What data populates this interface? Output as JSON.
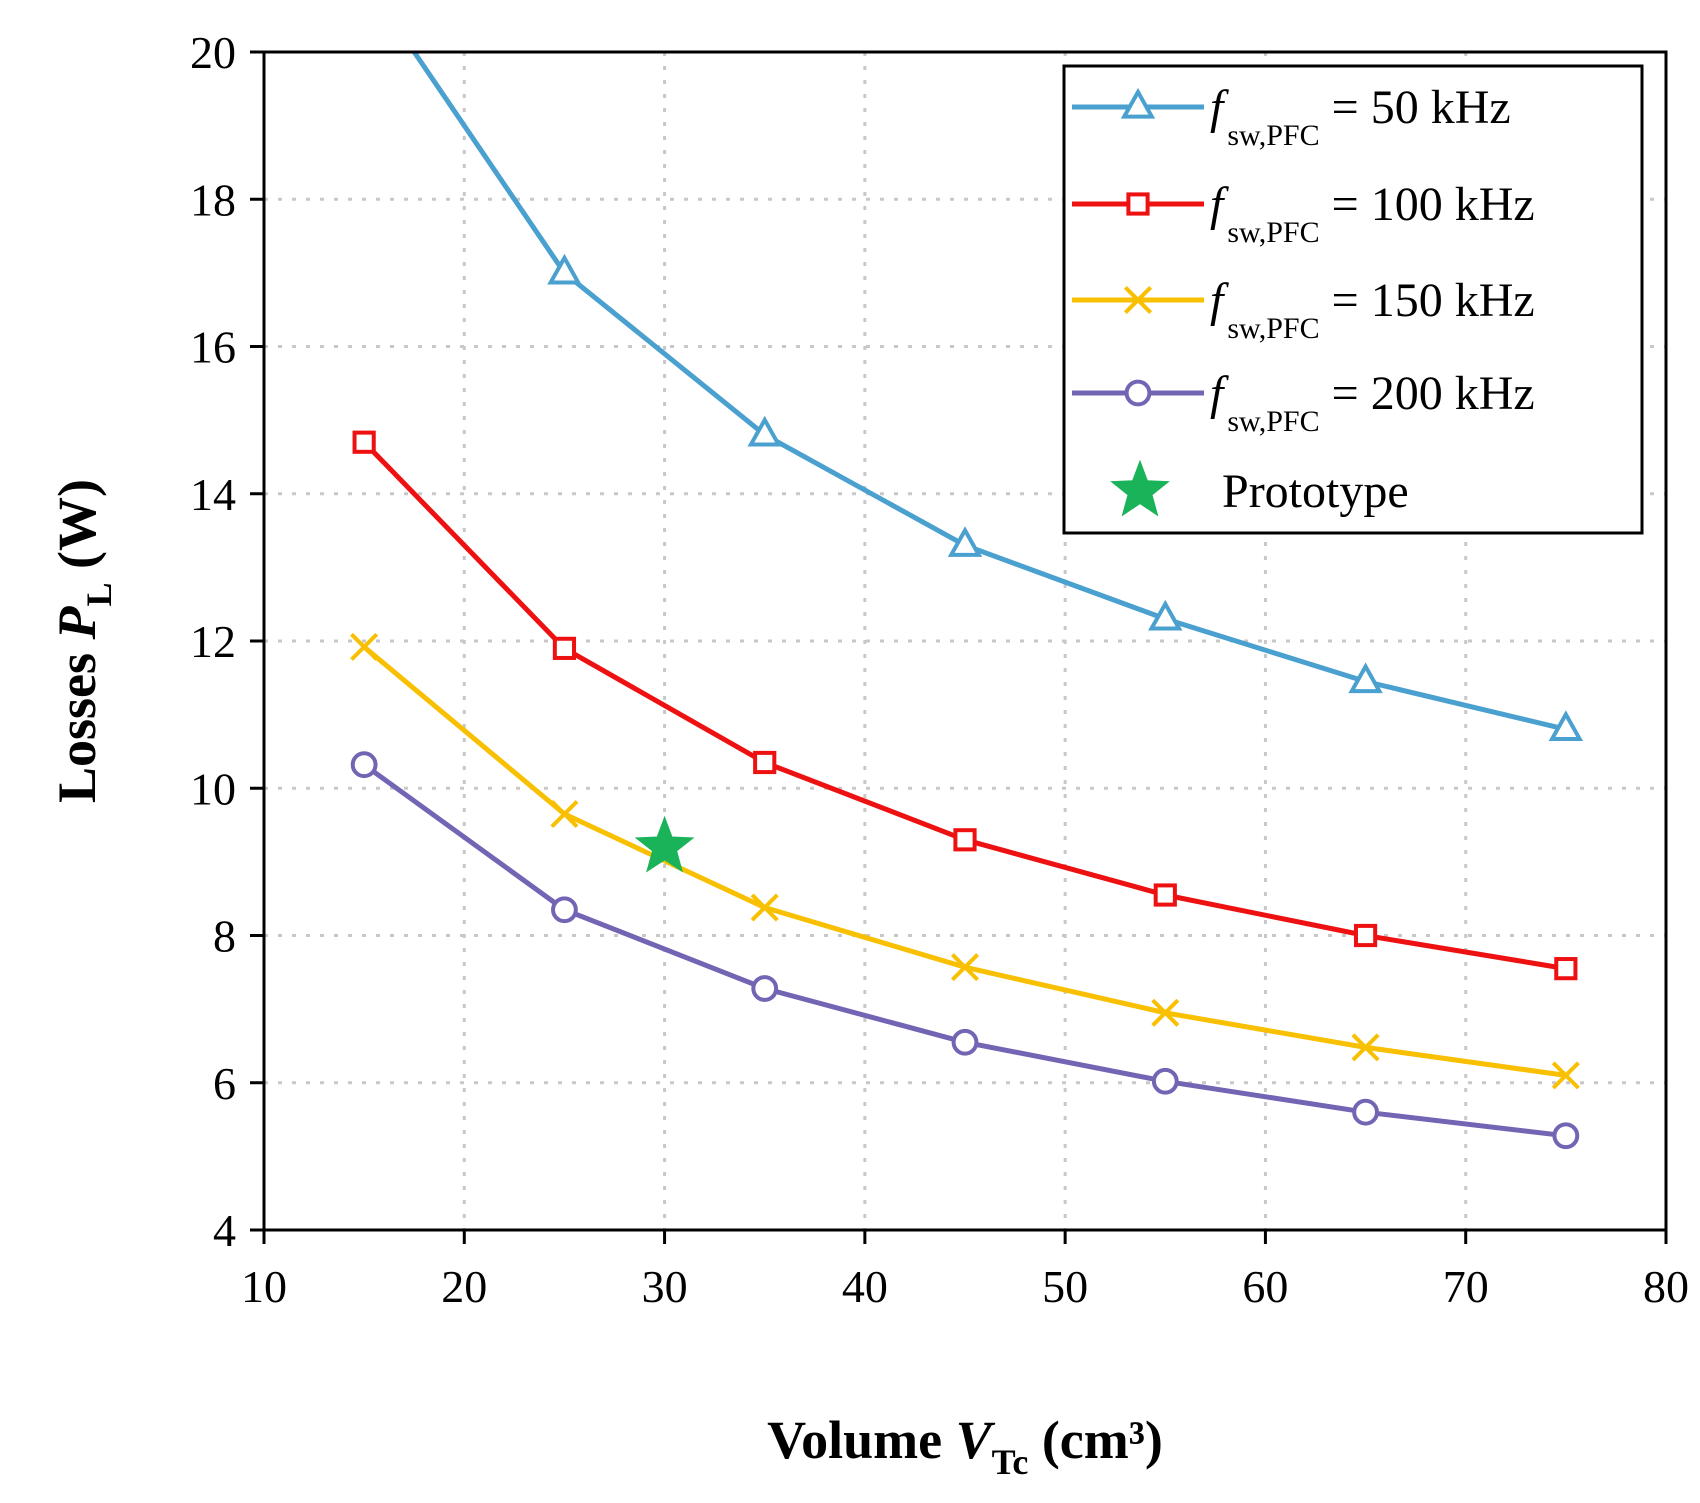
{
  "chart_data": {
    "type": "line",
    "title": "",
    "xlabel": {
      "prefix": "Volume ",
      "var": "V",
      "sub": "Tc",
      "suffix": " (cm³)"
    },
    "ylabel": {
      "prefix": "Losses ",
      "var": "P",
      "sub": "L",
      "suffix": " (W)"
    },
    "xlim": [
      10,
      80
    ],
    "ylim": [
      4,
      20
    ],
    "xticks": [
      10,
      20,
      30,
      40,
      50,
      60,
      70,
      80
    ],
    "yticks": [
      4,
      6,
      8,
      10,
      12,
      14,
      16,
      18,
      20
    ],
    "grid": true,
    "legend_position": "top-right",
    "x": [
      15,
      25,
      35,
      45,
      55,
      65,
      75
    ],
    "series": [
      {
        "name": "fsw,PFC = 50 kHz",
        "label_var": "f",
        "label_sub": "sw,PFC",
        "label_rest": " = 50 kHz",
        "color": "#4aa0cf",
        "marker": "triangle",
        "x": [
          17.5,
          25,
          35,
          45,
          55,
          65,
          75
        ],
        "values": [
          20.0,
          17.0,
          14.8,
          13.3,
          12.3,
          11.45,
          10.8
        ]
      },
      {
        "name": "fsw,PFC = 100 kHz",
        "label_var": "f",
        "label_sub": "sw,PFC",
        "label_rest": " = 100 kHz",
        "color": "#ee1111",
        "marker": "square",
        "x": [
          15,
          25,
          35,
          45,
          55,
          65,
          75
        ],
        "values": [
          14.7,
          11.9,
          10.35,
          9.3,
          8.55,
          8.0,
          7.55
        ]
      },
      {
        "name": "fsw,PFC = 150 kHz",
        "label_var": "f",
        "label_sub": "sw,PFC",
        "label_rest": " = 150 kHz",
        "color": "#f8c000",
        "marker": "x",
        "x": [
          15,
          25,
          35,
          45,
          55,
          65,
          75
        ],
        "values": [
          11.92,
          9.65,
          8.38,
          7.57,
          6.95,
          6.48,
          6.1
        ]
      },
      {
        "name": "fsw,PFC = 200 kHz",
        "label_var": "f",
        "label_sub": "sw,PFC",
        "label_rest": " = 200 kHz",
        "color": "#7464b4",
        "marker": "circle",
        "x": [
          15,
          25,
          35,
          45,
          55,
          65,
          75
        ],
        "values": [
          10.32,
          8.35,
          7.28,
          6.55,
          6.02,
          5.6,
          5.28
        ]
      }
    ],
    "annotations": [
      {
        "name": "Prototype",
        "x": 30,
        "y": 9.2,
        "marker": "star",
        "color": "#1ab35a"
      }
    ]
  }
}
